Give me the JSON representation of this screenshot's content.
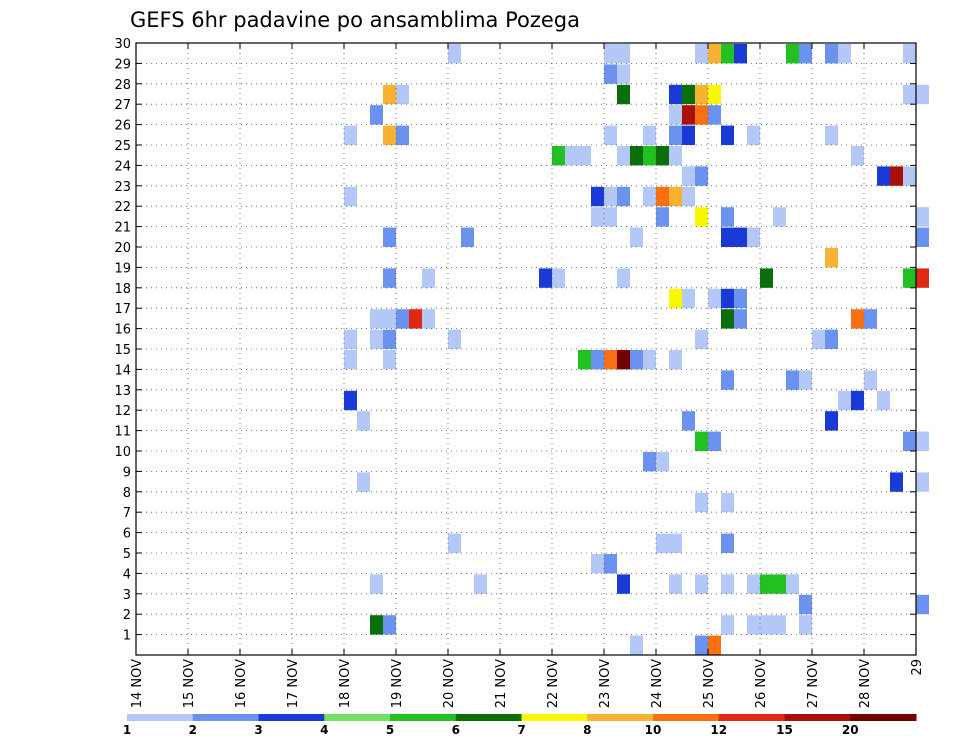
{
  "chart_data": {
    "type": "heatmap",
    "title": "GEFS 6hr padavine po ansamblima Pozega",
    "xlabel": "",
    "ylabel": "",
    "x_ticks": [
      "14 NOV",
      "15 NOV",
      "16 NOV",
      "17 NOV",
      "18 NOV",
      "19 NOV",
      "20 NOV",
      "21 NOV",
      "22 NOV",
      "23 NOV",
      "24 NOV",
      "25 NOV",
      "26 NOV",
      "27 NOV",
      "28 NOV",
      "29"
    ],
    "y_ticks": [
      "1",
      "2",
      "3",
      "4",
      "5",
      "6",
      "7",
      "8",
      "9",
      "10",
      "11",
      "12",
      "13",
      "14",
      "15",
      "16",
      "17",
      "18",
      "19",
      "20",
      "21",
      "22",
      "23",
      "24",
      "25",
      "26",
      "27",
      "28",
      "29",
      "30"
    ],
    "x_range_days": [
      14,
      29
    ],
    "y_range_members": [
      0,
      30
    ],
    "grid": true,
    "legend_position": "bottom",
    "legend": {
      "levels": [
        "1",
        "2",
        "3",
        "4",
        "5",
        "6",
        "7",
        "8",
        "10",
        "12",
        "15",
        "20"
      ],
      "colors": [
        "#b4c8f8",
        "#6a92ee",
        "#1a3ad8",
        "#74e064",
        "#22c122",
        "#0a6e0a",
        "#f8f800",
        "#f8b232",
        "#f87012",
        "#e02812",
        "#a81008",
        "#720000"
      ]
    },
    "cells": [
      [
        30,
        20.0,
        1
      ],
      [
        30,
        23.0,
        1
      ],
      [
        30,
        23.25,
        1
      ],
      [
        30,
        24.75,
        1
      ],
      [
        30,
        25.0,
        8
      ],
      [
        30,
        25.25,
        5
      ],
      [
        30,
        25.5,
        3
      ],
      [
        30,
        26.5,
        5
      ],
      [
        30,
        26.75,
        2
      ],
      [
        30,
        27.25,
        2
      ],
      [
        30,
        27.5,
        1
      ],
      [
        30,
        28.75,
        1
      ],
      [
        29,
        23.0,
        2
      ],
      [
        29,
        23.25,
        1
      ],
      [
        28,
        18.75,
        8
      ],
      [
        28,
        19.0,
        1
      ],
      [
        28,
        23.25,
        6
      ],
      [
        28,
        24.25,
        3
      ],
      [
        28,
        24.5,
        6
      ],
      [
        28,
        24.75,
        8
      ],
      [
        28,
        25.0,
        7
      ],
      [
        28,
        28.75,
        1
      ],
      [
        28,
        29.0,
        1
      ],
      [
        27,
        18.5,
        2
      ],
      [
        27,
        24.25,
        1
      ],
      [
        27,
        24.5,
        15
      ],
      [
        27,
        24.75,
        10
      ],
      [
        27,
        25.0,
        2
      ],
      [
        26,
        18.0,
        1
      ],
      [
        26,
        18.75,
        8
      ],
      [
        26,
        19.0,
        2
      ],
      [
        26,
        23.0,
        1
      ],
      [
        26,
        23.75,
        1
      ],
      [
        26,
        24.25,
        2
      ],
      [
        26,
        24.5,
        3
      ],
      [
        26,
        25.25,
        3
      ],
      [
        26,
        25.75,
        1
      ],
      [
        26,
        27.25,
        1
      ],
      [
        25,
        22.0,
        5
      ],
      [
        25,
        22.25,
        1
      ],
      [
        25,
        22.5,
        1
      ],
      [
        25,
        23.25,
        1
      ],
      [
        25,
        23.5,
        6
      ],
      [
        25,
        23.75,
        5
      ],
      [
        25,
        24.0,
        6
      ],
      [
        25,
        24.25,
        1
      ],
      [
        25,
        27.75,
        1
      ],
      [
        24,
        24.5,
        1
      ],
      [
        24,
        24.75,
        2
      ],
      [
        24,
        28.25,
        3
      ],
      [
        24,
        28.5,
        15
      ],
      [
        24,
        28.75,
        1
      ],
      [
        23,
        18.0,
        1
      ],
      [
        23,
        22.75,
        3
      ],
      [
        23,
        23.0,
        1
      ],
      [
        23,
        23.25,
        2
      ],
      [
        23,
        23.75,
        1
      ],
      [
        23,
        24.0,
        10
      ],
      [
        23,
        24.25,
        8
      ],
      [
        23,
        24.5,
        1
      ],
      [
        22,
        22.75,
        1
      ],
      [
        22,
        23.0,
        1
      ],
      [
        22,
        24.0,
        2
      ],
      [
        22,
        24.75,
        7
      ],
      [
        22,
        25.25,
        2
      ],
      [
        22,
        26.25,
        1
      ],
      [
        22,
        29.0,
        1
      ],
      [
        21,
        18.75,
        2
      ],
      [
        21,
        20.25,
        2
      ],
      [
        21,
        23.5,
        1
      ],
      [
        21,
        25.25,
        3
      ],
      [
        21,
        25.5,
        3
      ],
      [
        21,
        25.75,
        1
      ],
      [
        21,
        29.0,
        2
      ],
      [
        20,
        27.25,
        8
      ],
      [
        19,
        18.75,
        2
      ],
      [
        19,
        19.5,
        1
      ],
      [
        19,
        21.75,
        3
      ],
      [
        19,
        22.0,
        1
      ],
      [
        19,
        23.25,
        1
      ],
      [
        19,
        26.0,
        6
      ],
      [
        19,
        28.75,
        5
      ],
      [
        19,
        29.0,
        12
      ],
      [
        18,
        24.25,
        7
      ],
      [
        18,
        24.5,
        1
      ],
      [
        18,
        25.0,
        1
      ],
      [
        18,
        25.25,
        3
      ],
      [
        18,
        25.5,
        2
      ],
      [
        17,
        18.5,
        1
      ],
      [
        17,
        18.75,
        1
      ],
      [
        17,
        19.0,
        2
      ],
      [
        17,
        19.25,
        12
      ],
      [
        17,
        19.5,
        1
      ],
      [
        17,
        25.25,
        6
      ],
      [
        17,
        25.5,
        2
      ],
      [
        17,
        27.75,
        10
      ],
      [
        17,
        28.0,
        2
      ],
      [
        16,
        18.0,
        1
      ],
      [
        16,
        18.5,
        1
      ],
      [
        16,
        18.75,
        2
      ],
      [
        16,
        20.0,
        1
      ],
      [
        16,
        24.75,
        1
      ],
      [
        16,
        27.0,
        1
      ],
      [
        16,
        27.25,
        2
      ],
      [
        15,
        18.0,
        1
      ],
      [
        15,
        18.75,
        1
      ],
      [
        15,
        22.5,
        5
      ],
      [
        15,
        22.75,
        2
      ],
      [
        15,
        23.0,
        10
      ],
      [
        15,
        23.25,
        20
      ],
      [
        15,
        23.5,
        2
      ],
      [
        15,
        23.75,
        1
      ],
      [
        15,
        24.25,
        1
      ],
      [
        14,
        25.25,
        2
      ],
      [
        14,
        26.5,
        2
      ],
      [
        14,
        26.75,
        1
      ],
      [
        14,
        28.0,
        1
      ],
      [
        13,
        18.0,
        3
      ],
      [
        13,
        27.5,
        1
      ],
      [
        13,
        27.75,
        3
      ],
      [
        13,
        28.25,
        1
      ],
      [
        12,
        18.25,
        1
      ],
      [
        12,
        24.5,
        2
      ],
      [
        12,
        27.25,
        3
      ],
      [
        11,
        24.75,
        5
      ],
      [
        11,
        25.0,
        2
      ],
      [
        11,
        28.75,
        2
      ],
      [
        11,
        29.0,
        1
      ],
      [
        10,
        23.75,
        2
      ],
      [
        10,
        24.0,
        1
      ],
      [
        9,
        18.25,
        1
      ],
      [
        9,
        28.5,
        3
      ],
      [
        9,
        29.0,
        1
      ],
      [
        8,
        24.75,
        1
      ],
      [
        8,
        25.25,
        1
      ],
      [
        6,
        20.0,
        1
      ],
      [
        6,
        24.0,
        1
      ],
      [
        6,
        24.25,
        1
      ],
      [
        6,
        25.25,
        2
      ],
      [
        5,
        22.75,
        1
      ],
      [
        5,
        23.0,
        2
      ],
      [
        4,
        18.5,
        1
      ],
      [
        4,
        20.5,
        1
      ],
      [
        4,
        23.25,
        3
      ],
      [
        4,
        24.25,
        1
      ],
      [
        4,
        24.75,
        1
      ],
      [
        4,
        25.25,
        1
      ],
      [
        4,
        25.75,
        1
      ],
      [
        4,
        26.0,
        5
      ],
      [
        4,
        26.25,
        5
      ],
      [
        4,
        26.5,
        1
      ],
      [
        3,
        26.75,
        2
      ],
      [
        3,
        29.0,
        2
      ],
      [
        2,
        18.5,
        6
      ],
      [
        2,
        18.75,
        2
      ],
      [
        2,
        25.25,
        1
      ],
      [
        2,
        25.75,
        1
      ],
      [
        2,
        26.0,
        1
      ],
      [
        2,
        26.25,
        1
      ],
      [
        2,
        26.75,
        1
      ],
      [
        1,
        23.5,
        1
      ],
      [
        1,
        24.75,
        2
      ],
      [
        1,
        25.0,
        10
      ]
    ]
  }
}
